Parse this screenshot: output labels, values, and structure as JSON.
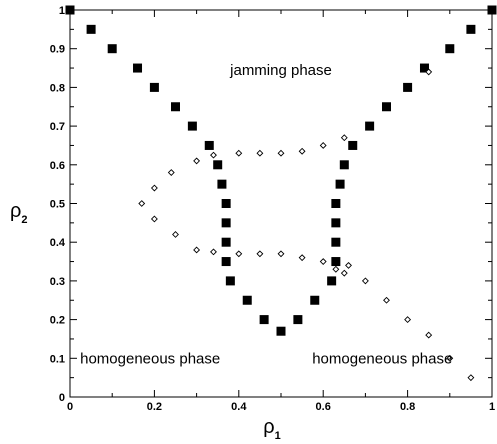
{
  "chart_data": {
    "type": "scatter",
    "title": "",
    "xlabel": "ρ",
    "xlabel_subscript": "1",
    "ylabel": "ρ",
    "ylabel_subscript": "2",
    "xlim": [
      0,
      1
    ],
    "ylim": [
      0,
      1
    ],
    "grid": false,
    "legend": "none",
    "x_ticks": [
      "0",
      "0.2",
      "0.4",
      "0.6",
      "0.8",
      "1"
    ],
    "y_ticks": [
      "0",
      "0.1",
      "0.2",
      "0.3",
      "0.4",
      "0.5",
      "0.6",
      "0.7",
      "0.8",
      "0.9",
      "1"
    ],
    "annotations": [
      {
        "text": "jamming phase",
        "x": 0.5,
        "y": 0.845
      },
      {
        "text": "homogeneous phase",
        "x": 0.19,
        "y": 0.1
      },
      {
        "text": "homogeneous phase",
        "x": 0.74,
        "y": 0.1
      }
    ],
    "series": [
      {
        "marker": "filled-square",
        "color": "#000000",
        "points": [
          [
            0.0,
            1.0
          ],
          [
            0.05,
            0.95
          ],
          [
            0.1,
            0.9
          ],
          [
            0.16,
            0.85
          ],
          [
            0.2,
            0.8
          ],
          [
            0.25,
            0.75
          ],
          [
            0.29,
            0.7
          ],
          [
            0.33,
            0.65
          ],
          [
            0.35,
            0.6
          ],
          [
            0.36,
            0.55
          ],
          [
            0.37,
            0.5
          ],
          [
            0.37,
            0.45
          ],
          [
            0.37,
            0.4
          ],
          [
            0.37,
            0.35
          ],
          [
            0.38,
            0.3
          ],
          [
            0.42,
            0.25
          ],
          [
            0.46,
            0.2
          ],
          [
            0.5,
            0.17
          ],
          [
            0.54,
            0.2
          ],
          [
            0.58,
            0.25
          ],
          [
            0.62,
            0.3
          ],
          [
            0.63,
            0.35
          ],
          [
            0.63,
            0.4
          ],
          [
            0.63,
            0.45
          ],
          [
            0.63,
            0.5
          ],
          [
            0.64,
            0.55
          ],
          [
            0.65,
            0.6
          ],
          [
            0.67,
            0.65
          ],
          [
            0.71,
            0.7
          ],
          [
            0.75,
            0.75
          ],
          [
            0.8,
            0.8
          ],
          [
            0.84,
            0.85
          ],
          [
            0.9,
            0.9
          ],
          [
            0.95,
            0.95
          ],
          [
            1.0,
            1.0
          ]
        ]
      },
      {
        "marker": "open-diamond",
        "color": "#000000",
        "points": [
          [
            0.17,
            0.5
          ],
          [
            0.2,
            0.54
          ],
          [
            0.2,
            0.46
          ],
          [
            0.24,
            0.58
          ],
          [
            0.25,
            0.42
          ],
          [
            0.3,
            0.61
          ],
          [
            0.3,
            0.38
          ],
          [
            0.34,
            0.625
          ],
          [
            0.34,
            0.375
          ],
          [
            0.4,
            0.63
          ],
          [
            0.4,
            0.37
          ],
          [
            0.45,
            0.63
          ],
          [
            0.45,
            0.37
          ],
          [
            0.5,
            0.63
          ],
          [
            0.5,
            0.37
          ],
          [
            0.55,
            0.635
          ],
          [
            0.55,
            0.36
          ],
          [
            0.6,
            0.65
          ],
          [
            0.6,
            0.35
          ],
          [
            0.63,
            0.33
          ],
          [
            0.65,
            0.67
          ],
          [
            0.65,
            0.32
          ],
          [
            0.66,
            0.34
          ],
          [
            0.7,
            0.3
          ],
          [
            0.75,
            0.25
          ],
          [
            0.8,
            0.2
          ],
          [
            0.85,
            0.16
          ],
          [
            0.85,
            0.84
          ],
          [
            0.9,
            0.1
          ],
          [
            0.95,
            0.05
          ]
        ]
      }
    ]
  }
}
